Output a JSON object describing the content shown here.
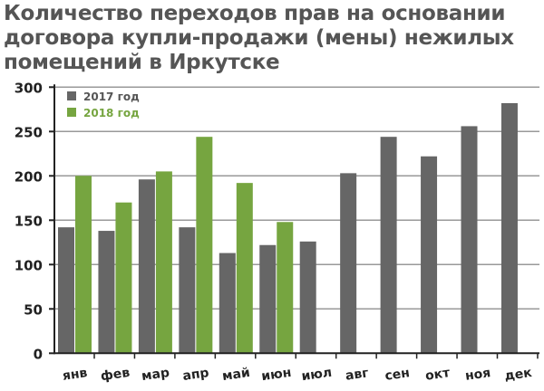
{
  "chart_data": {
    "type": "bar",
    "title": "Количество переходов прав на основании договора купли-продажи (мены) нежилых помещений в Иркутске",
    "categories": [
      "янв",
      "фев",
      "мар",
      "апр",
      "май",
      "июн",
      "июл",
      "авг",
      "сен",
      "окт",
      "ноя",
      "дек"
    ],
    "series": [
      {
        "name": "2017 год",
        "color": "#666666",
        "values": [
          142,
          138,
          196,
          142,
          113,
          122,
          126,
          203,
          244,
          222,
          256,
          282
        ]
      },
      {
        "name": "2018 год",
        "color": "#76a540",
        "values": [
          200,
          170,
          205,
          244,
          192,
          148,
          null,
          null,
          null,
          null,
          null,
          null
        ]
      }
    ],
    "yticks": [
      "0",
      "50",
      "100",
      "150",
      "200",
      "250",
      "300"
    ],
    "ylim": [
      0,
      300
    ],
    "xlabel": "",
    "ylabel": "",
    "grid": true,
    "legend": "top-left"
  }
}
